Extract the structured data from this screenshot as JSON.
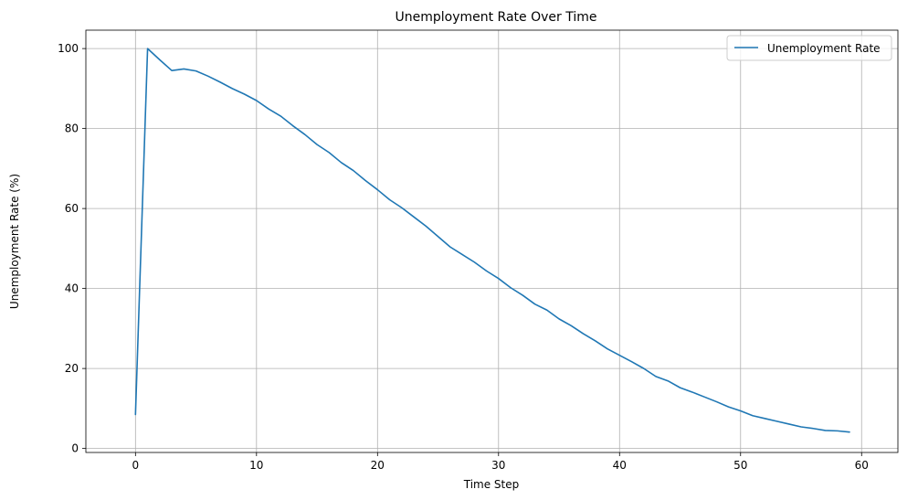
{
  "chart_data": {
    "type": "line",
    "title": "Unemployment Rate Over Time",
    "xlabel": "Time Step",
    "ylabel": "Unemployment Rate (%)",
    "xlim": [
      -4.1,
      63
    ],
    "ylim": [
      -1,
      104.6
    ],
    "xticks": [
      0,
      10,
      20,
      30,
      40,
      50,
      60
    ],
    "yticks": [
      0,
      20,
      40,
      60,
      80,
      100
    ],
    "grid": true,
    "legend_position": "upper-right",
    "series_color": "#1f77b4",
    "series": [
      {
        "name": "Unemployment Rate",
        "x": [
          0,
          1,
          2,
          3,
          4,
          5,
          6,
          7,
          8,
          9,
          10,
          11,
          12,
          13,
          14,
          15,
          16,
          17,
          18,
          19,
          20,
          21,
          22,
          23,
          24,
          25,
          26,
          27,
          28,
          29,
          30,
          31,
          32,
          33,
          34,
          35,
          36,
          37,
          38,
          39,
          40,
          41,
          42,
          43,
          44,
          45,
          46,
          47,
          48,
          49,
          50,
          51,
          52,
          53,
          54,
          55,
          56,
          57,
          58,
          59
        ],
        "values": [
          8.5,
          100,
          97.2,
          94.5,
          94.9,
          94.4,
          93.1,
          91.6,
          90,
          88.6,
          87,
          84.9,
          83.1,
          80.7,
          78.5,
          76,
          74,
          71.5,
          69.5,
          67,
          64.7,
          62.2,
          60.2,
          57.9,
          55.6,
          53,
          50.4,
          48.5,
          46.6,
          44.4,
          42.5,
          40.2,
          38.3,
          36.1,
          34.6,
          32.4,
          30.7,
          28.7,
          26.9,
          24.9,
          23.3,
          21.7,
          20,
          18,
          16.9,
          15.2,
          14.1,
          12.9,
          11.7,
          10.4,
          9.4,
          8.2,
          7.5,
          6.8,
          6.1,
          5.4,
          5,
          4.5,
          4.4,
          4.1
        ]
      }
    ]
  }
}
